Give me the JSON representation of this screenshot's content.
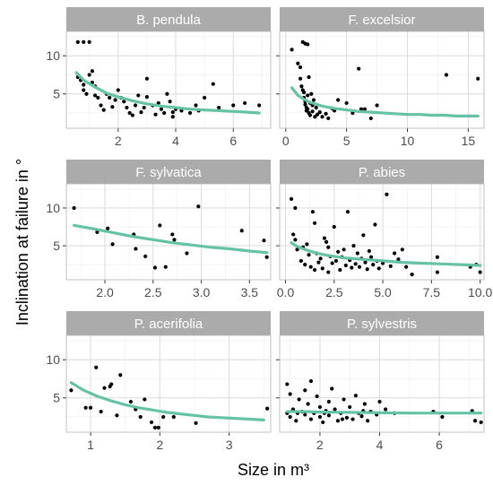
{
  "xlabel": "Size in m³",
  "ylabel": "Inclination at failure in °",
  "colors": {
    "fit": "#66c2a5",
    "point": "#000000",
    "strip": "#ababab",
    "grid_major": "#dedede",
    "grid_minor": "#eeeeee",
    "panel_border": "#b3b3b3"
  },
  "chart_data": [
    {
      "type": "scatter",
      "title": "B. pendula",
      "xlim": [
        0.2,
        7.3
      ],
      "ylim": [
        0.5,
        13.2
      ],
      "xticks": [
        2,
        4,
        6
      ],
      "xtick_labels": [
        "2",
        "4",
        "6"
      ],
      "yticks": [
        5,
        10
      ],
      "ytick_labels": [
        "5",
        "10"
      ],
      "points": [
        [
          0.6,
          11.8
        ],
        [
          0.8,
          11.8
        ],
        [
          1.0,
          11.8
        ],
        [
          0.6,
          7.2
        ],
        [
          0.7,
          6.8
        ],
        [
          0.8,
          6.2
        ],
        [
          0.8,
          5.5
        ],
        [
          0.9,
          5.0
        ],
        [
          1.0,
          7.5
        ],
        [
          1.1,
          6.5
        ],
        [
          1.1,
          8.0
        ],
        [
          1.2,
          6.0
        ],
        [
          1.3,
          4.5
        ],
        [
          1.4,
          3.5
        ],
        [
          1.5,
          2.9
        ],
        [
          1.6,
          5.0
        ],
        [
          1.7,
          4.5
        ],
        [
          1.8,
          3.3
        ],
        [
          1.9,
          4.2
        ],
        [
          2.0,
          5.5
        ],
        [
          2.1,
          4.5
        ],
        [
          2.2,
          4.0
        ],
        [
          2.3,
          3.2
        ],
        [
          2.4,
          2.5
        ],
        [
          2.5,
          2.2
        ],
        [
          2.6,
          3.5
        ],
        [
          2.7,
          4.8
        ],
        [
          2.8,
          2.6
        ],
        [
          3.0,
          4.6
        ],
        [
          3.0,
          7.0
        ],
        [
          3.2,
          3.5
        ],
        [
          3.3,
          2.3
        ],
        [
          3.4,
          3.8
        ],
        [
          3.5,
          3.0
        ],
        [
          3.6,
          2.5
        ],
        [
          3.7,
          5.0
        ],
        [
          3.8,
          4.0
        ],
        [
          3.9,
          2.0
        ],
        [
          4.0,
          3.0
        ],
        [
          4.2,
          2.8
        ],
        [
          4.5,
          2.5
        ],
        [
          4.7,
          3.5
        ],
        [
          4.8,
          2.8
        ],
        [
          5.0,
          4.5
        ],
        [
          5.3,
          6.3
        ],
        [
          5.5,
          3.2
        ],
        [
          6.0,
          3.5
        ],
        [
          6.4,
          3.8
        ],
        [
          6.9,
          3.5
        ],
        [
          1.2,
          4.8
        ],
        [
          2.9,
          3.2
        ],
        [
          3.9,
          2.6
        ]
      ],
      "fit": [
        [
          0.55,
          7.8
        ],
        [
          0.8,
          6.8
        ],
        [
          1.2,
          5.9
        ],
        [
          1.6,
          5.1
        ],
        [
          2.0,
          4.6
        ],
        [
          2.5,
          4.1
        ],
        [
          3.0,
          3.7
        ],
        [
          3.5,
          3.4
        ],
        [
          4.0,
          3.2
        ],
        [
          4.5,
          3.0
        ],
        [
          5.0,
          2.9
        ],
        [
          5.5,
          2.8
        ],
        [
          6.0,
          2.7
        ],
        [
          6.5,
          2.6
        ],
        [
          6.9,
          2.5
        ]
      ]
    },
    {
      "type": "scatter",
      "title": "F. excelsior",
      "xlim": [
        -0.5,
        16.3
      ],
      "ylim": [
        0.5,
        13.2
      ],
      "xticks": [
        0,
        5,
        10,
        15
      ],
      "xtick_labels": [
        "0",
        "5",
        "10",
        "15"
      ],
      "yticks": [
        5,
        10
      ],
      "ytick_labels": [
        "5",
        "10"
      ],
      "points": [
        [
          0.5,
          10.8
        ],
        [
          1.0,
          9.0
        ],
        [
          1.2,
          8.5
        ],
        [
          1.4,
          11.8
        ],
        [
          1.6,
          11.6
        ],
        [
          1.8,
          11.5
        ],
        [
          1.2,
          7.0
        ],
        [
          1.3,
          6.0
        ],
        [
          1.4,
          5.5
        ],
        [
          1.5,
          5.2
        ],
        [
          1.5,
          4.5
        ],
        [
          1.6,
          4.0
        ],
        [
          1.6,
          3.6
        ],
        [
          1.7,
          3.2
        ],
        [
          1.7,
          2.8
        ],
        [
          1.8,
          4.8
        ],
        [
          1.8,
          3.0
        ],
        [
          1.9,
          2.5
        ],
        [
          2.0,
          2.2
        ],
        [
          2.0,
          3.8
        ],
        [
          2.1,
          5.0
        ],
        [
          2.2,
          2.7
        ],
        [
          2.3,
          4.2
        ],
        [
          2.4,
          2.0
        ],
        [
          2.5,
          3.2
        ],
        [
          2.6,
          2.3
        ],
        [
          2.8,
          2.6
        ],
        [
          3.0,
          2.0
        ],
        [
          3.3,
          2.4
        ],
        [
          3.5,
          1.8
        ],
        [
          4.0,
          2.8
        ],
        [
          4.3,
          4.2
        ],
        [
          5.0,
          3.8
        ],
        [
          5.5,
          2.5
        ],
        [
          6.0,
          8.3
        ],
        [
          6.2,
          3.0
        ],
        [
          6.5,
          3.0
        ],
        [
          7.0,
          1.8
        ],
        [
          7.5,
          3.5
        ],
        [
          13.2,
          7.5
        ],
        [
          15.8,
          7.0
        ],
        [
          1.9,
          7.2
        ],
        [
          2.2,
          3.5
        ],
        [
          3.8,
          3.1
        ]
      ],
      "fit": [
        [
          0.5,
          5.8
        ],
        [
          1.0,
          4.8
        ],
        [
          1.5,
          4.3
        ],
        [
          2.0,
          3.9
        ],
        [
          3.0,
          3.4
        ],
        [
          4.0,
          3.1
        ],
        [
          5.0,
          2.9
        ],
        [
          6.0,
          2.7
        ],
        [
          7.0,
          2.6
        ],
        [
          8.0,
          2.5
        ],
        [
          9.0,
          2.4
        ],
        [
          10.0,
          2.3
        ],
        [
          11.0,
          2.3
        ],
        [
          12.0,
          2.2
        ],
        [
          13.0,
          2.2
        ],
        [
          14.0,
          2.1
        ],
        [
          15.0,
          2.1
        ],
        [
          15.8,
          2.1
        ]
      ]
    },
    {
      "type": "scatter",
      "title": "F. sylvatica",
      "xlim": [
        1.6,
        3.72
      ],
      "ylim": [
        0.5,
        13.2
      ],
      "xticks": [
        2.0,
        2.5,
        3.0,
        3.5
      ],
      "xtick_labels": [
        "2.0",
        "2.5",
        "3.0",
        "3.5"
      ],
      "yticks": [
        5,
        10
      ],
      "ytick_labels": [
        "5",
        "10"
      ],
      "points": [
        [
          1.68,
          10.0
        ],
        [
          1.92,
          6.8
        ],
        [
          2.03,
          7.3
        ],
        [
          2.08,
          5.2
        ],
        [
          2.3,
          6.5
        ],
        [
          2.32,
          4.6
        ],
        [
          2.42,
          3.6
        ],
        [
          2.52,
          2.1
        ],
        [
          2.57,
          7.7
        ],
        [
          2.63,
          2.2
        ],
        [
          2.7,
          6.5
        ],
        [
          2.72,
          5.8
        ],
        [
          2.85,
          4.0
        ],
        [
          2.97,
          10.2
        ],
        [
          3.42,
          7.0
        ],
        [
          3.65,
          5.7
        ],
        [
          3.68,
          3.5
        ]
      ],
      "fit": [
        [
          1.68,
          7.7
        ],
        [
          1.9,
          7.2
        ],
        [
          2.1,
          6.7
        ],
        [
          2.3,
          6.2
        ],
        [
          2.5,
          5.8
        ],
        [
          2.7,
          5.4
        ],
        [
          2.9,
          5.1
        ],
        [
          3.1,
          4.8
        ],
        [
          3.3,
          4.6
        ],
        [
          3.5,
          4.3
        ],
        [
          3.68,
          4.1
        ]
      ]
    },
    {
      "type": "scatter",
      "title": "P. abies",
      "xlim": [
        -0.3,
        10.2
      ],
      "ylim": [
        0.5,
        13.2
      ],
      "xticks": [
        0.0,
        2.5,
        5.0,
        7.5,
        10.0
      ],
      "xtick_labels": [
        "0.0",
        "2.5",
        "5.0",
        "7.5",
        "10.0"
      ],
      "yticks": [
        5,
        10
      ],
      "ytick_labels": [
        "5",
        "10"
      ],
      "points": [
        [
          0.3,
          11.2
        ],
        [
          0.5,
          10.0
        ],
        [
          0.4,
          6.5
        ],
        [
          0.5,
          5.8
        ],
        [
          0.6,
          4.5
        ],
        [
          0.8,
          3.0
        ],
        [
          1.0,
          2.5
        ],
        [
          1.1,
          5.2
        ],
        [
          1.2,
          3.8
        ],
        [
          1.3,
          2.2
        ],
        [
          1.4,
          9.5
        ],
        [
          1.5,
          8.0
        ],
        [
          1.6,
          4.0
        ],
        [
          1.7,
          2.8
        ],
        [
          1.8,
          3.3
        ],
        [
          1.9,
          2.0
        ],
        [
          2.0,
          6.0
        ],
        [
          2.1,
          5.5
        ],
        [
          2.2,
          4.8
        ],
        [
          2.3,
          3.6
        ],
        [
          2.4,
          2.7
        ],
        [
          2.5,
          7.5
        ],
        [
          2.6,
          3.0
        ],
        [
          2.7,
          4.2
        ],
        [
          2.8,
          1.8
        ],
        [
          2.9,
          3.5
        ],
        [
          3.0,
          4.5
        ],
        [
          3.1,
          2.4
        ],
        [
          3.2,
          9.5
        ],
        [
          3.3,
          3.1
        ],
        [
          3.4,
          2.1
        ],
        [
          3.5,
          5.0
        ],
        [
          3.6,
          2.6
        ],
        [
          3.7,
          4.0
        ],
        [
          3.8,
          2.2
        ],
        [
          3.9,
          3.3
        ],
        [
          4.0,
          6.4
        ],
        [
          4.1,
          2.8
        ],
        [
          4.2,
          1.9
        ],
        [
          4.3,
          4.3
        ],
        [
          4.4,
          3.5
        ],
        [
          4.5,
          2.5
        ],
        [
          4.6,
          7.8
        ],
        [
          4.7,
          3.0
        ],
        [
          4.8,
          2.0
        ],
        [
          5.0,
          2.7
        ],
        [
          5.2,
          11.8
        ],
        [
          5.4,
          2.3
        ],
        [
          5.6,
          4.0
        ],
        [
          5.8,
          3.2
        ],
        [
          6.0,
          4.5
        ],
        [
          6.2,
          2.2
        ],
        [
          6.5,
          1.2
        ],
        [
          7.8,
          3.5
        ],
        [
          7.8,
          1.5
        ],
        [
          9.5,
          2.2
        ],
        [
          9.8,
          2.5
        ],
        [
          10.0,
          1.5
        ],
        [
          0.9,
          4.8
        ],
        [
          1.5,
          1.8
        ],
        [
          2.2,
          1.5
        ]
      ],
      "fit": [
        [
          0.3,
          5.4
        ],
        [
          0.6,
          4.9
        ],
        [
          1.0,
          4.5
        ],
        [
          1.5,
          4.1
        ],
        [
          2.0,
          3.8
        ],
        [
          2.5,
          3.6
        ],
        [
          3.0,
          3.4
        ],
        [
          3.5,
          3.3
        ],
        [
          4.0,
          3.2
        ],
        [
          5.0,
          3.0
        ],
        [
          6.0,
          2.8
        ],
        [
          7.0,
          2.7
        ],
        [
          8.0,
          2.6
        ],
        [
          9.0,
          2.5
        ],
        [
          10.0,
          2.4
        ]
      ]
    },
    {
      "type": "scatter",
      "title": "P. acerifolia",
      "xlim": [
        0.65,
        3.6
      ],
      "ylim": [
        0.5,
        13.2
      ],
      "xticks": [
        1,
        2,
        3
      ],
      "xtick_labels": [
        "1",
        "2",
        "3"
      ],
      "yticks": [
        5,
        10
      ],
      "ytick_labels": [
        "5",
        "10"
      ],
      "points": [
        [
          0.72,
          6.0
        ],
        [
          0.93,
          3.7
        ],
        [
          1.0,
          3.7
        ],
        [
          1.08,
          9.0
        ],
        [
          1.2,
          6.3
        ],
        [
          1.28,
          6.5
        ],
        [
          1.3,
          6.8
        ],
        [
          1.38,
          2.7
        ],
        [
          1.43,
          8.0
        ],
        [
          1.58,
          4.5
        ],
        [
          1.72,
          2.5
        ],
        [
          1.78,
          4.8
        ],
        [
          1.88,
          1.8
        ],
        [
          1.93,
          1.1
        ],
        [
          1.98,
          1.1
        ],
        [
          2.05,
          2.5
        ],
        [
          2.2,
          2.5
        ],
        [
          2.52,
          1.7
        ],
        [
          3.55,
          3.6
        ],
        [
          1.15,
          3.2
        ],
        [
          1.65,
          3.5
        ]
      ],
      "fit": [
        [
          0.72,
          7.0
        ],
        [
          0.9,
          6.0
        ],
        [
          1.1,
          5.2
        ],
        [
          1.3,
          4.6
        ],
        [
          1.5,
          4.1
        ],
        [
          1.7,
          3.7
        ],
        [
          1.9,
          3.4
        ],
        [
          2.1,
          3.1
        ],
        [
          2.3,
          2.9
        ],
        [
          2.5,
          2.7
        ],
        [
          2.7,
          2.5
        ],
        [
          2.9,
          2.4
        ],
        [
          3.1,
          2.3
        ],
        [
          3.3,
          2.2
        ],
        [
          3.5,
          2.1
        ]
      ]
    },
    {
      "type": "scatter",
      "title": "P. sylvestris",
      "xlim": [
        0.65,
        7.5
      ],
      "ylim": [
        0.5,
        13.2
      ],
      "xticks": [
        2,
        4,
        6
      ],
      "xtick_labels": [
        "2",
        "4",
        "6"
      ],
      "yticks": [
        5,
        10
      ],
      "ytick_labels": [
        "5",
        "10"
      ],
      "points": [
        [
          0.9,
          6.8
        ],
        [
          1.0,
          5.5
        ],
        [
          0.9,
          3.0
        ],
        [
          1.0,
          2.5
        ],
        [
          1.1,
          3.5
        ],
        [
          1.2,
          2.0
        ],
        [
          1.3,
          4.8
        ],
        [
          1.4,
          3.2
        ],
        [
          1.5,
          2.8
        ],
        [
          1.5,
          6.0
        ],
        [
          1.6,
          4.2
        ],
        [
          1.7,
          2.2
        ],
        [
          1.7,
          7.2
        ],
        [
          1.8,
          3.0
        ],
        [
          1.9,
          5.2
        ],
        [
          2.0,
          2.5
        ],
        [
          2.0,
          3.8
        ],
        [
          2.1,
          1.8
        ],
        [
          2.2,
          3.3
        ],
        [
          2.3,
          4.5
        ],
        [
          2.3,
          2.7
        ],
        [
          2.4,
          6.2
        ],
        [
          2.5,
          3.5
        ],
        [
          2.6,
          2.0
        ],
        [
          2.7,
          3.0
        ],
        [
          2.8,
          4.8
        ],
        [
          2.9,
          2.4
        ],
        [
          3.0,
          3.8
        ],
        [
          3.1,
          2.2
        ],
        [
          3.2,
          5.3
        ],
        [
          3.3,
          3.0
        ],
        [
          3.4,
          2.6
        ],
        [
          3.5,
          4.2
        ],
        [
          3.6,
          2.0
        ],
        [
          3.7,
          3.2
        ],
        [
          3.9,
          2.8
        ],
        [
          4.0,
          4.5
        ],
        [
          4.2,
          3.5
        ],
        [
          4.5,
          3.0
        ],
        [
          5.8,
          3.2
        ],
        [
          6.1,
          2.5
        ],
        [
          7.1,
          3.3
        ],
        [
          7.2,
          2.0
        ],
        [
          7.4,
          1.8
        ],
        [
          1.25,
          3.0
        ],
        [
          2.15,
          3.0
        ],
        [
          2.75,
          2.2
        ],
        [
          3.45,
          3.3
        ]
      ],
      "fit": [
        [
          0.9,
          3.2
        ],
        [
          1.5,
          3.2
        ],
        [
          2.0,
          3.15
        ],
        [
          3.0,
          3.1
        ],
        [
          4.0,
          3.05
        ],
        [
          5.0,
          3.0
        ],
        [
          6.0,
          3.0
        ],
        [
          7.0,
          3.0
        ],
        [
          7.4,
          3.0
        ]
      ]
    }
  ]
}
